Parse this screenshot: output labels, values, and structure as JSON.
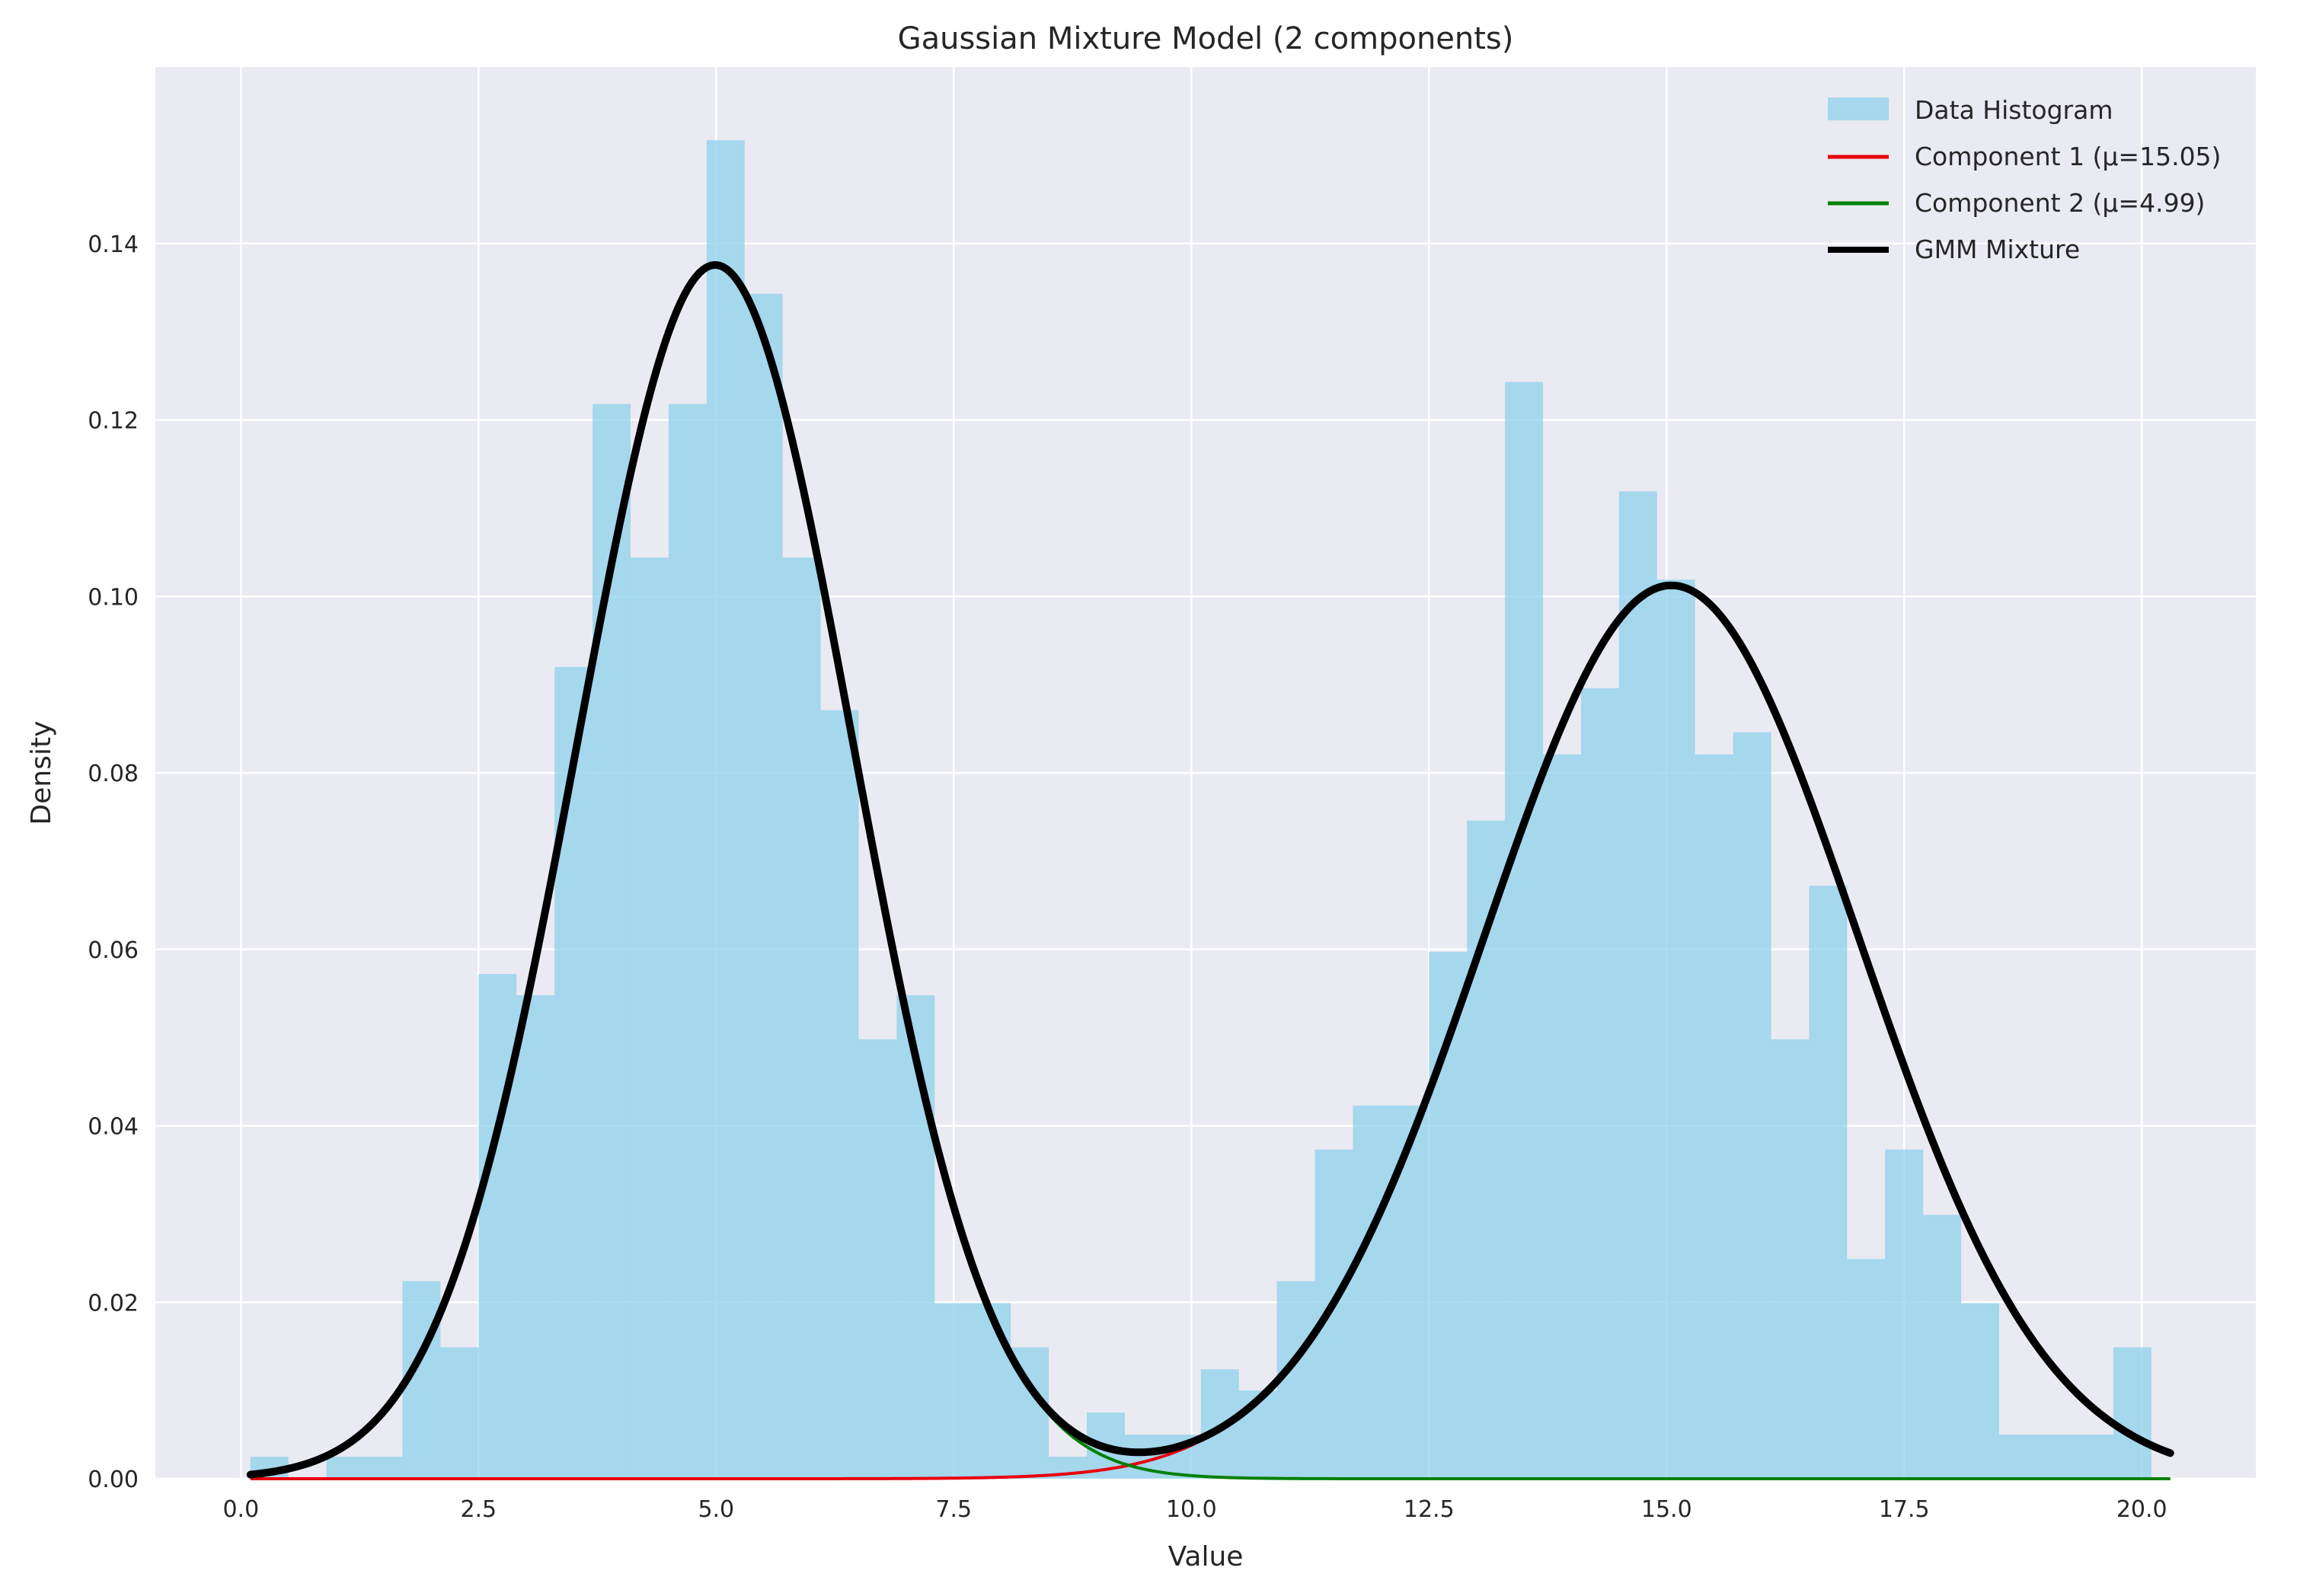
{
  "chart_data": {
    "type": "bar",
    "title": "Gaussian Mixture Model (2 components)",
    "xlabel": "Value",
    "ylabel": "Density",
    "xlim": [
      -0.9,
      21.2
    ],
    "ylim": [
      0,
      0.16
    ],
    "xticks": [
      "0.0",
      "2.5",
      "5.0",
      "7.5",
      "10.0",
      "12.5",
      "15.0",
      "17.5",
      "20.0"
    ],
    "xtick_values": [
      0,
      2.5,
      5,
      7.5,
      10,
      12.5,
      15,
      17.5,
      20
    ],
    "yticks": [
      "0.00",
      "0.02",
      "0.04",
      "0.06",
      "0.08",
      "0.10",
      "0.12",
      "0.14"
    ],
    "ytick_values": [
      0,
      0.02,
      0.04,
      0.06,
      0.08,
      0.1,
      0.12,
      0.14
    ],
    "grid": true,
    "legend_position": "top-right",
    "histogram": {
      "name": "Data Histogram",
      "color": "#87CEEB",
      "bin_start": 0.1,
      "bin_width": 0.4,
      "values": [
        0.0025,
        0.0,
        0.0025,
        0.0025,
        0.0224,
        0.0149,
        0.0572,
        0.0548,
        0.092,
        0.1218,
        0.1044,
        0.1218,
        0.1517,
        0.1343,
        0.1044,
        0.0871,
        0.0498,
        0.0548,
        0.0199,
        0.0199,
        0.0149,
        0.0025,
        0.0075,
        0.005,
        0.005,
        0.0124,
        0.01,
        0.0224,
        0.0373,
        0.0423,
        0.0423,
        0.0597,
        0.0746,
        0.1243,
        0.0821,
        0.0896,
        0.1119,
        0.1019,
        0.0821,
        0.0846,
        0.0498,
        0.0672,
        0.0249,
        0.0373,
        0.0299,
        0.0199,
        0.005,
        0.005,
        0.005,
        0.0149
      ]
    },
    "series": [
      {
        "name": "Component 1 (μ=15.05)",
        "color": "#e8000b",
        "line_width": 4,
        "mean": 15.05,
        "std": 1.97,
        "weight": 0.5
      },
      {
        "name": "Component 2 (μ=4.99)",
        "color": "#008000",
        "line_width": 4,
        "mean": 4.99,
        "std": 1.45,
        "weight": 0.5
      },
      {
        "name": "GMM Mixture",
        "color": "#000000",
        "line_width": 10
      }
    ],
    "x_range": [
      0.1,
      20.3
    ]
  }
}
